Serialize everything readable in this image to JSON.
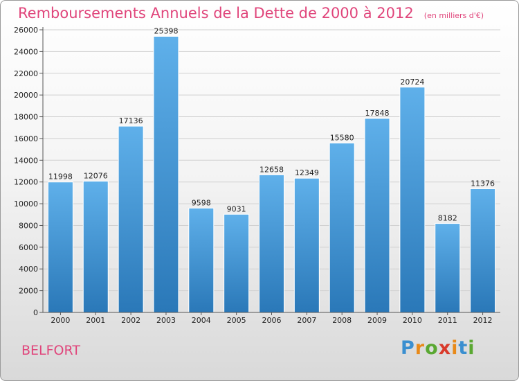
{
  "title": "Remboursements Annuels de la Dette de 2000 à 2012",
  "subtitle": "(en milliers d'€)",
  "city": "BELFORT",
  "logo": {
    "text": "Proxiti",
    "letter_colors": [
      "#3a8fd0",
      "#e88a1a",
      "#5aa832",
      "#d93a2b",
      "#e88a1a",
      "#3a8fd0",
      "#5aa832"
    ]
  },
  "colors": {
    "title": "#e0457b",
    "bar_light": "#5fb0ea",
    "bar_dark": "#2a78b8",
    "grid": "#d0d0d0"
  },
  "chart_data": {
    "type": "bar",
    "title": "Remboursements Annuels de la Dette de 2000 à 2012",
    "subtitle": "(en milliers d'€)",
    "xlabel": "",
    "ylabel": "",
    "categories": [
      "2000",
      "2001",
      "2002",
      "2003",
      "2004",
      "2005",
      "2006",
      "2007",
      "2008",
      "2009",
      "2010",
      "2011",
      "2012"
    ],
    "values": [
      11998,
      12076,
      17136,
      25398,
      9598,
      9031,
      12658,
      12349,
      15580,
      17848,
      20724,
      8182,
      11376
    ],
    "ylim": [
      0,
      26000
    ],
    "yticks": [
      0,
      2000,
      4000,
      6000,
      8000,
      10000,
      12000,
      14000,
      16000,
      18000,
      20000,
      22000,
      24000,
      26000
    ],
    "grid": true,
    "data_labels": true
  }
}
